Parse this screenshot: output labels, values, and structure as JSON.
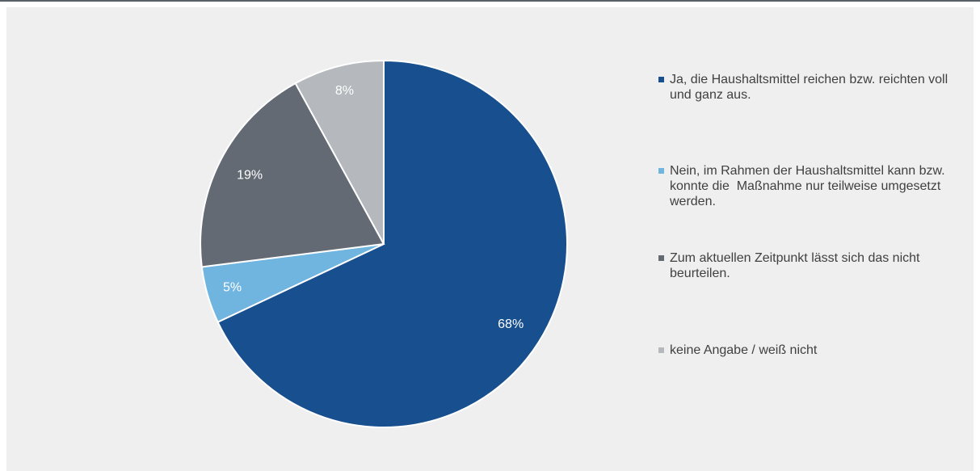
{
  "chart_data": {
    "type": "pie",
    "categories": [
      "Ja, die Haushaltsmittel reichen bzw. reichten voll und ganz aus.",
      "Nein, im Rahmen der Haushaltsmittel kann bzw. konnte die  Maßnahme nur teilweise umgesetzt werden.",
      "Zum aktuellen Zeitpunkt lässt sich das nicht beurteilen.",
      "keine Angabe / weiß nicht"
    ],
    "values": [
      68,
      5,
      19,
      8
    ],
    "value_labels": [
      "68%",
      "5%",
      "19%",
      "8%"
    ],
    "colors": [
      "#174f8f",
      "#6fb5e0",
      "#646a73",
      "#b5b9bd"
    ],
    "legend": "right"
  }
}
